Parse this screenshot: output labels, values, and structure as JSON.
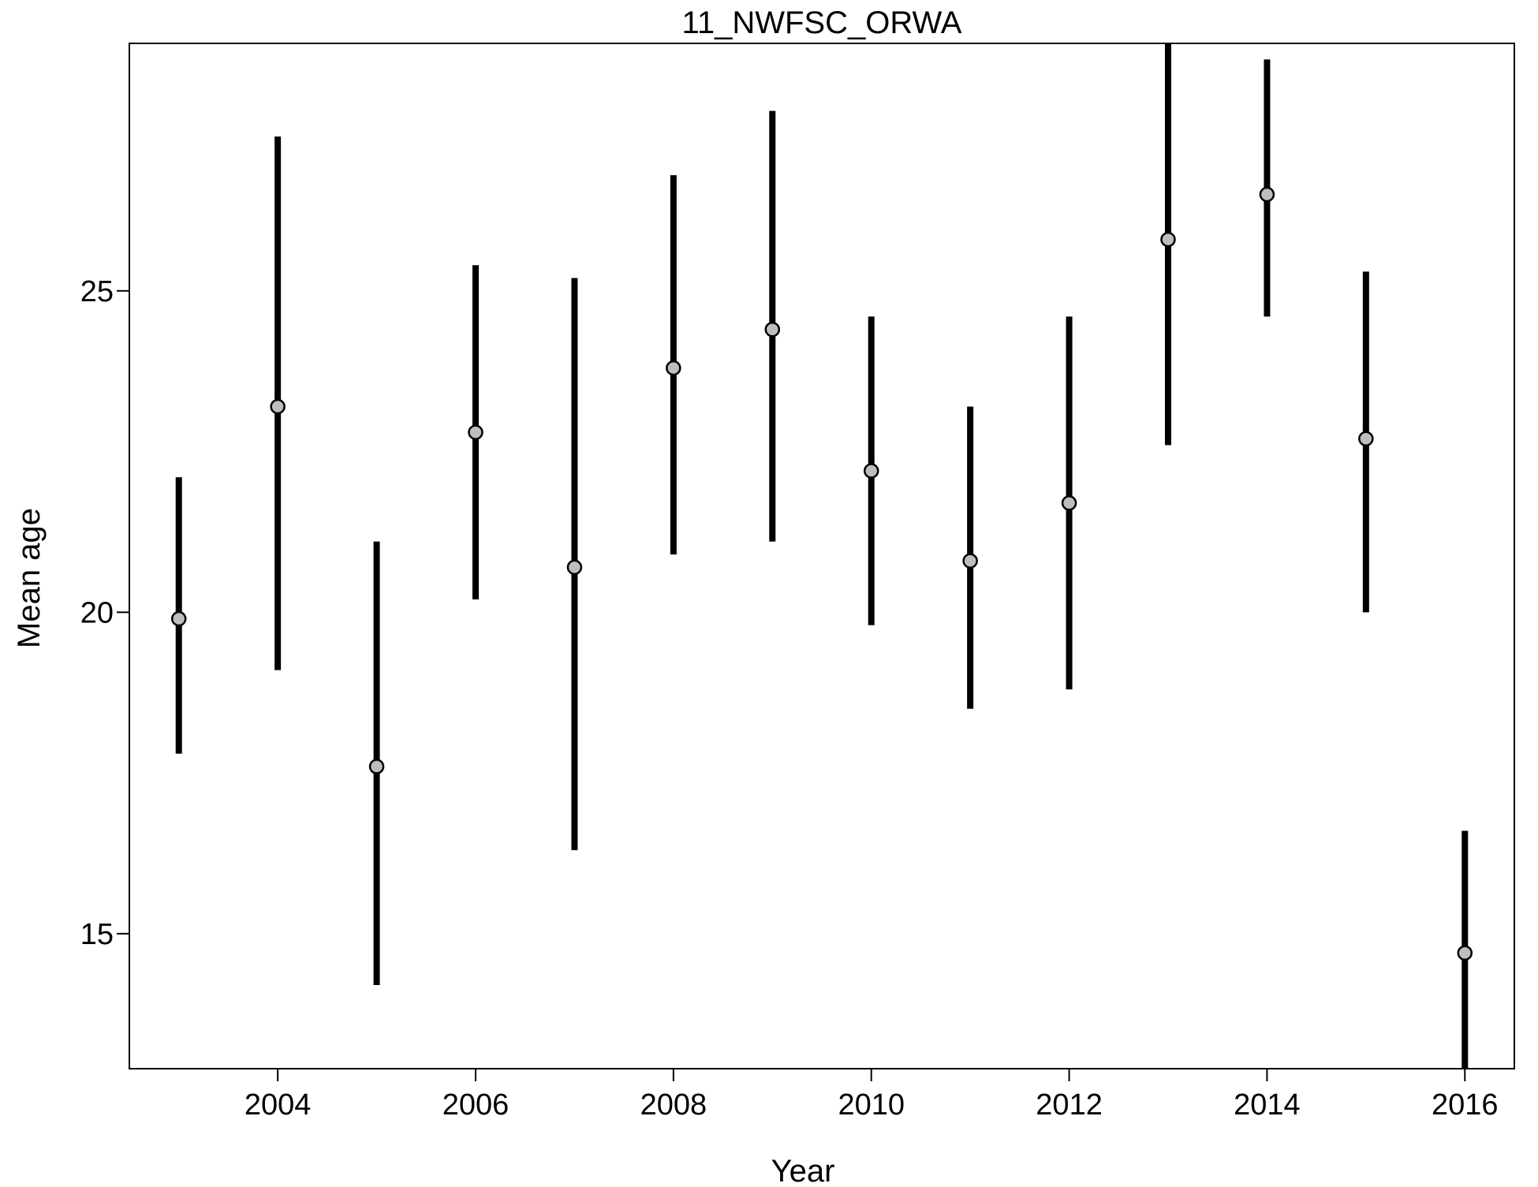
{
  "chart_data": {
    "type": "scatter",
    "title": "11_NWFSC_ORWA",
    "xlabel": "Year",
    "ylabel": "Mean age",
    "xlim": [
      2002.5,
      2016.5
    ],
    "ylim": [
      12.9,
      28.85
    ],
    "x_ticks": [
      "2004",
      "2006",
      "2008",
      "2010",
      "2012",
      "2014",
      "2016"
    ],
    "y_ticks": [
      "15",
      "20",
      "25"
    ],
    "grid": false,
    "series": [
      {
        "x": [
          2003,
          2004,
          2005,
          2006,
          2007,
          2008,
          2009,
          2010,
          2011,
          2012,
          2013,
          2014,
          2015,
          2016
        ],
        "values": [
          19.9,
          23.2,
          17.6,
          22.8,
          20.7,
          23.8,
          24.4,
          22.2,
          20.8,
          21.7,
          25.8,
          26.5,
          22.7,
          14.7
        ],
        "lower": [
          17.8,
          19.1,
          14.2,
          20.2,
          16.3,
          20.9,
          21.1,
          19.8,
          18.5,
          18.8,
          22.6,
          24.6,
          20.0,
          12.9
        ],
        "upper": [
          22.1,
          27.4,
          21.1,
          25.4,
          25.2,
          26.8,
          27.8,
          24.6,
          23.2,
          24.6,
          28.85,
          28.6,
          25.3,
          16.6
        ]
      }
    ],
    "colors": {
      "bar": "#000000",
      "point_fill": "#bebebe",
      "point_stroke": "#000000",
      "frame": "#000000"
    }
  }
}
